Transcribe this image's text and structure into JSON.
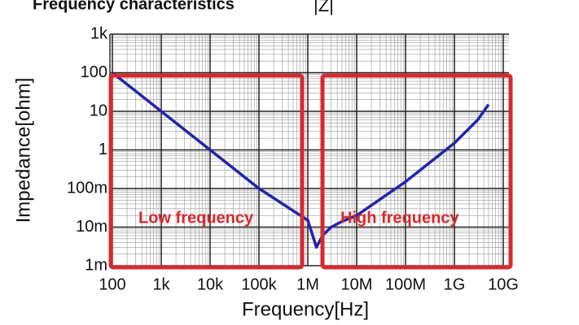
{
  "chart_data": {
    "type": "line",
    "title": "Frequency characteristics",
    "subtitle": "|Z|",
    "x_label": "Frequency[Hz]",
    "y_label": "Impedance[ohm]",
    "annotations": [
      "Low frequency",
      "High frequency"
    ],
    "log_x": true,
    "log_y": true,
    "grid": true,
    "xlim": [
      100,
      10000000000
    ],
    "ylim": [
      0.001,
      1000
    ],
    "xticks": [
      100,
      {
        "value": 1000,
        "label": "1k"
      },
      {
        "value": 10000,
        "label": "10k"
      },
      {
        "value": 100000,
        "label": "100k"
      },
      {
        "value": 1000000,
        "label": "1M"
      },
      {
        "value": 10000000,
        "label": "10M"
      },
      {
        "value": 100000000,
        "label": "100M"
      },
      {
        "value": 1000000000,
        "label": "1G"
      },
      {
        "value": 10000000000,
        "label": "10G"
      }
    ],
    "yticks": [
      {
        "value": 1000,
        "label": "1k"
      },
      100,
      10,
      1,
      {
        "value": 0.1,
        "label": "100m"
      },
      {
        "value": 0.01,
        "label": "10m"
      },
      {
        "value": 0.001,
        "label": "1m"
      }
    ],
    "x": [
      100,
      1000,
      10000,
      100000,
      1000000,
      1500000,
      2000000,
      3000000,
      5000000,
      10000000,
      100000000,
      1000000000,
      3000000000,
      5000000000
    ],
    "series": [
      {
        "color": "#2424a8",
        "values": [
          100,
          10,
          1,
          0.1,
          0.015,
          0.003,
          0.006,
          0.01,
          0.014,
          0.02,
          0.15,
          1.5,
          6,
          15
        ]
      }
    ]
  }
}
